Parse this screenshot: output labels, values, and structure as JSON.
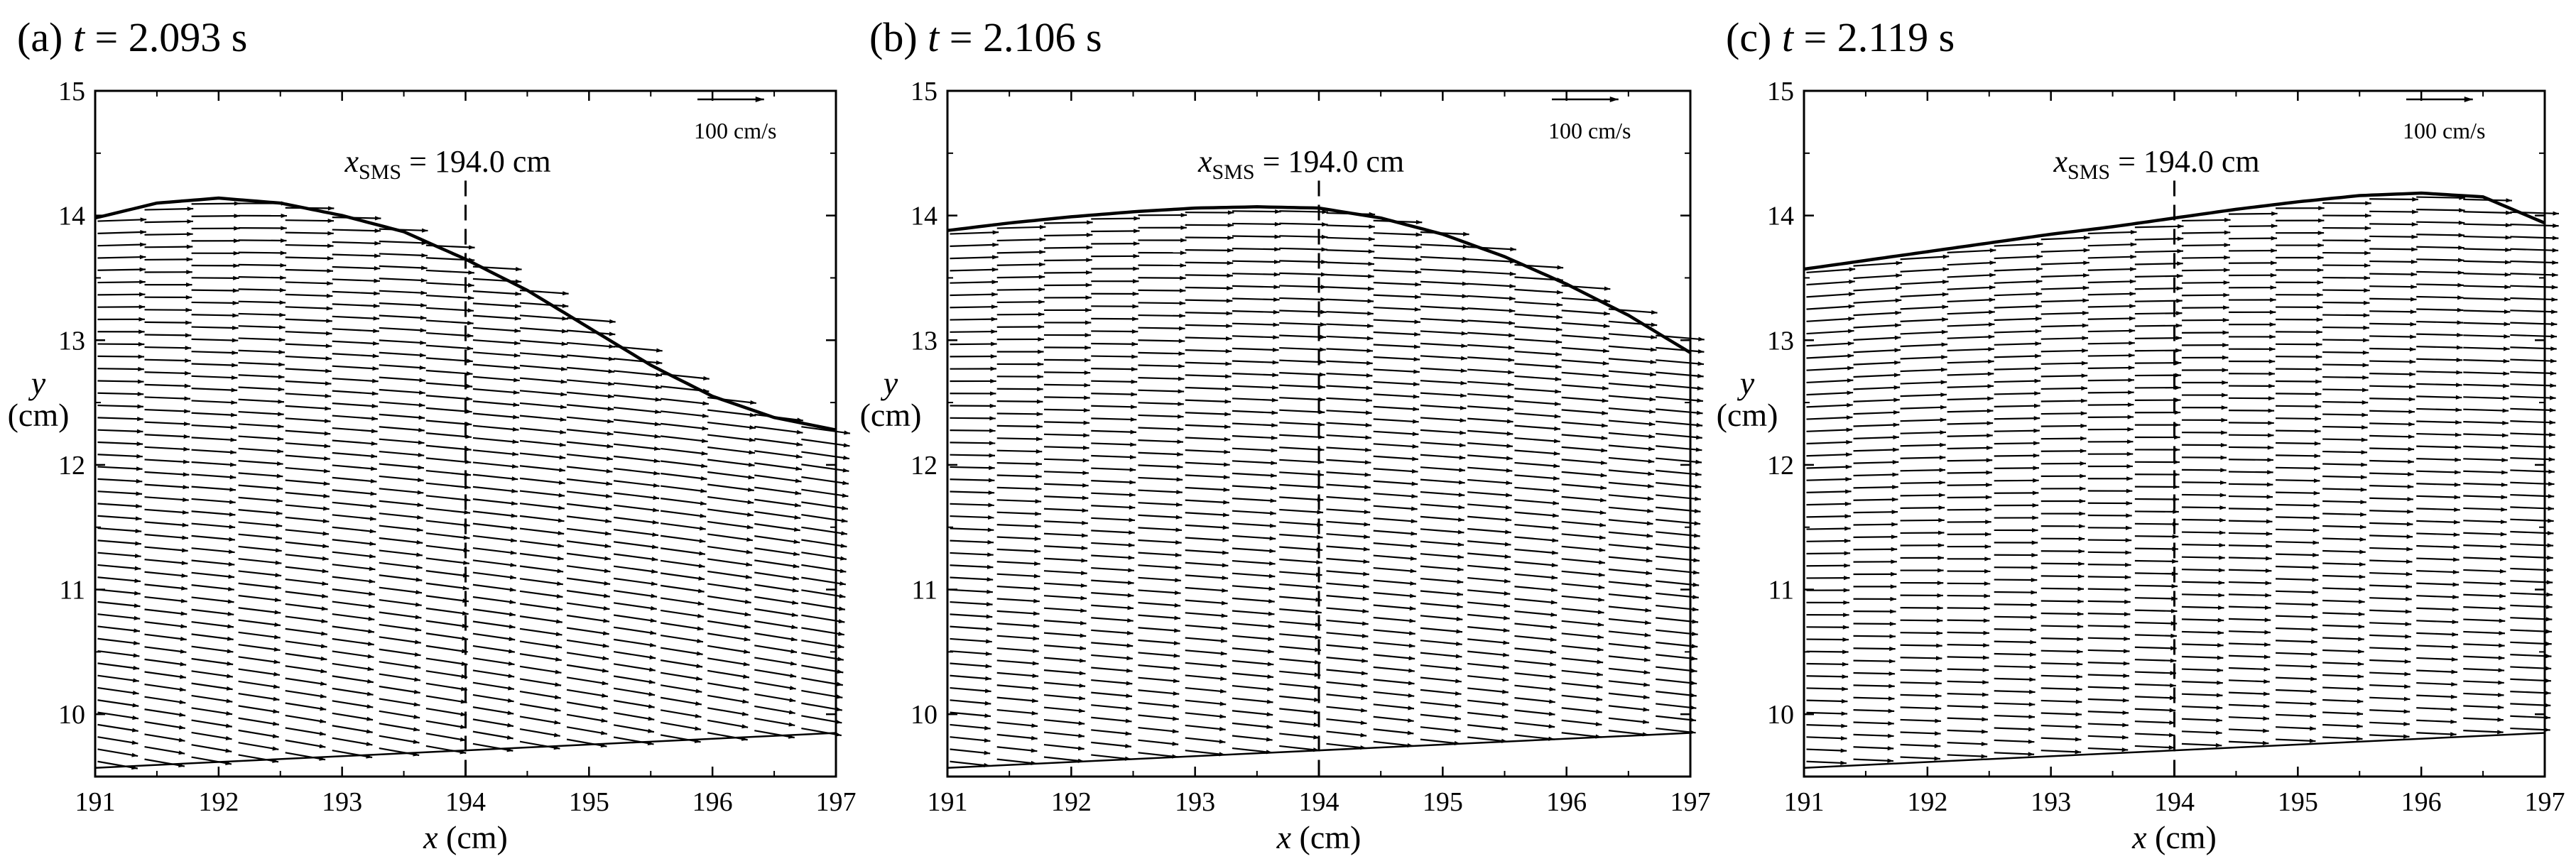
{
  "chart_data": [
    {
      "type": "vector-field",
      "panel_label": "(a)",
      "time_symbol": "t",
      "time_value": "2.093",
      "time_unit": "s",
      "xlabel_symbol": "x",
      "xlabel_unit": "(cm)",
      "ylabel_symbol": "y",
      "ylabel_unit": "(cm)",
      "xlim": [
        191,
        197
      ],
      "ylim": [
        9.5,
        15
      ],
      "xticks": [
        "191",
        "192",
        "193",
        "194",
        "195",
        "196",
        "197"
      ],
      "yticks": [
        "10",
        "11",
        "12",
        "13",
        "14",
        "15"
      ],
      "reference_vector": {
        "label": "100 cm/s",
        "speed_cm_s": 100
      },
      "sms_line": {
        "x": 194.0,
        "symbol": "x",
        "subscript": "SMS",
        "text": "= 194.0 cm"
      },
      "free_surface": [
        [
          191.0,
          13.98
        ],
        [
          191.5,
          14.1
        ],
        [
          192.0,
          14.14
        ],
        [
          192.5,
          14.1
        ],
        [
          193.0,
          14.0
        ],
        [
          193.5,
          13.87
        ],
        [
          194.0,
          13.65
        ],
        [
          194.5,
          13.4
        ],
        [
          195.0,
          13.1
        ],
        [
          195.5,
          12.8
        ],
        [
          196.0,
          12.55
        ],
        [
          196.5,
          12.38
        ],
        [
          197.0,
          12.28
        ]
      ],
      "bottom": [
        [
          191.0,
          9.57
        ],
        [
          197.0,
          9.85
        ]
      ],
      "velocity_field": {
        "u_surface_cm_s": 55,
        "u_bottom_cm_s": 45,
        "v_range_cm_s": [
          -8,
          2
        ],
        "x_columns": 16
      }
    },
    {
      "type": "vector-field",
      "panel_label": "(b)",
      "time_symbol": "t",
      "time_value": "2.106",
      "time_unit": "s",
      "xlabel_symbol": "x",
      "xlabel_unit": "(cm)",
      "ylabel_symbol": "y",
      "ylabel_unit": "(cm)",
      "xlim": [
        191,
        197
      ],
      "ylim": [
        9.5,
        15
      ],
      "xticks": [
        "191",
        "192",
        "193",
        "194",
        "195",
        "196",
        "197"
      ],
      "yticks": [
        "10",
        "11",
        "12",
        "13",
        "14",
        "15"
      ],
      "reference_vector": {
        "label": "100 cm/s",
        "speed_cm_s": 100
      },
      "sms_line": {
        "x": 194.0,
        "symbol": "x",
        "subscript": "SMS",
        "text": "= 194.0 cm"
      },
      "free_surface": [
        [
          191.0,
          13.88
        ],
        [
          191.5,
          13.94
        ],
        [
          192.0,
          13.99
        ],
        [
          192.5,
          14.03
        ],
        [
          193.0,
          14.06
        ],
        [
          193.5,
          14.07
        ],
        [
          194.0,
          14.06
        ],
        [
          194.5,
          13.98
        ],
        [
          195.0,
          13.85
        ],
        [
          195.5,
          13.67
        ],
        [
          196.0,
          13.45
        ],
        [
          196.5,
          13.2
        ],
        [
          197.0,
          12.9
        ]
      ],
      "bottom": [
        [
          191.0,
          9.57
        ],
        [
          197.0,
          9.85
        ]
      ],
      "velocity_field": {
        "u_surface_cm_s": 55,
        "u_bottom_cm_s": 45,
        "v_range_cm_s": [
          -5,
          2
        ],
        "x_columns": 16
      }
    },
    {
      "type": "vector-field",
      "panel_label": "(c)",
      "time_symbol": "t",
      "time_value": "2.119",
      "time_unit": "s",
      "xlabel_symbol": "x",
      "xlabel_unit": "(cm)",
      "ylabel_symbol": "y",
      "ylabel_unit": "(cm)",
      "xlim": [
        191,
        197
      ],
      "ylim": [
        9.5,
        15
      ],
      "xticks": [
        "191",
        "192",
        "193",
        "194",
        "195",
        "196",
        "197"
      ],
      "yticks": [
        "10",
        "11",
        "12",
        "13",
        "14",
        "15"
      ],
      "reference_vector": {
        "label": "100 cm/s",
        "speed_cm_s": 100
      },
      "sms_line": {
        "x": 194.0,
        "symbol": "x",
        "subscript": "SMS",
        "text": "= 194.0 cm"
      },
      "free_surface": [
        [
          191.0,
          13.57
        ],
        [
          191.5,
          13.64
        ],
        [
          192.0,
          13.71
        ],
        [
          192.5,
          13.78
        ],
        [
          193.0,
          13.85
        ],
        [
          193.5,
          13.91
        ],
        [
          194.0,
          13.98
        ],
        [
          194.5,
          14.05
        ],
        [
          195.0,
          14.11
        ],
        [
          195.5,
          14.16
        ],
        [
          196.0,
          14.18
        ],
        [
          196.5,
          14.15
        ],
        [
          197.0,
          13.94
        ]
      ],
      "bottom": [
        [
          191.0,
          9.57
        ],
        [
          197.0,
          9.85
        ]
      ],
      "velocity_field": {
        "u_surface_cm_s": 55,
        "u_bottom_cm_s": 45,
        "v_range_cm_s": [
          -2,
          4
        ],
        "x_columns": 16
      }
    }
  ]
}
